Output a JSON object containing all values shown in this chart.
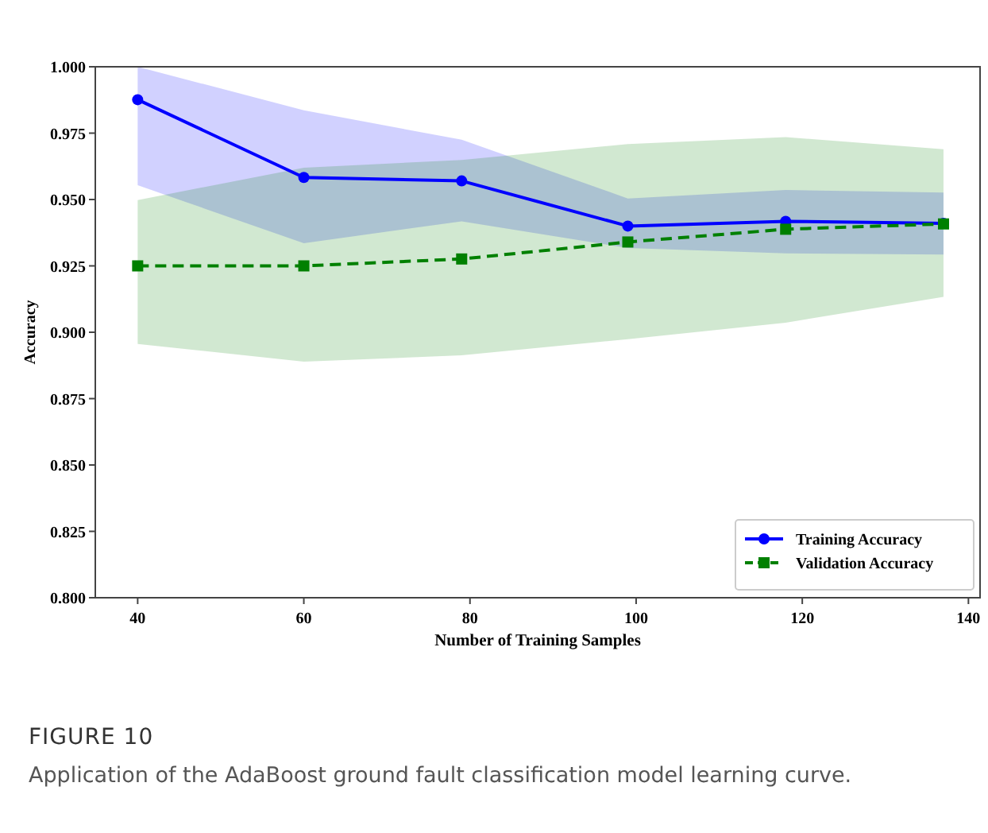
{
  "chart_data": {
    "type": "line",
    "xlabel": "Number of Training Samples",
    "ylabel": "Accuracy",
    "x": [
      40,
      60,
      79,
      99,
      118,
      137
    ],
    "series": [
      {
        "name": "Training Accuracy",
        "color": "#0000ff",
        "marker": "circle",
        "line_style": "solid",
        "values": [
          0.9876,
          0.9583,
          0.957,
          0.94,
          0.9418,
          0.941
        ],
        "lower": [
          0.9554,
          0.9335,
          0.9418,
          0.9317,
          0.9297,
          0.9293
        ],
        "upper": [
          1.0,
          0.9836,
          0.9725,
          0.9504,
          0.9536,
          0.9526
        ]
      },
      {
        "name": "Validation Accuracy",
        "color": "#008000",
        "marker": "square",
        "line_style": "dashed",
        "values": [
          0.925,
          0.925,
          0.9276,
          0.934,
          0.9388,
          0.9408
        ],
        "lower": [
          0.8956,
          0.8889,
          0.8913,
          0.8974,
          0.9036,
          0.9133
        ],
        "upper": [
          0.9498,
          0.962,
          0.9649,
          0.9709,
          0.9735,
          0.9689
        ]
      }
    ],
    "xlim": [
      34.9,
      141.4
    ],
    "ylim": [
      0.8,
      1.0
    ],
    "xticks": [
      40,
      60,
      80,
      100,
      120,
      140
    ],
    "yticks": [
      {
        "value": 0.8,
        "label": "0.800"
      },
      {
        "value": 0.825,
        "label": "0.825"
      },
      {
        "value": 0.85,
        "label": "0.850"
      },
      {
        "value": 0.875,
        "label": "0.875"
      },
      {
        "value": 0.9,
        "label": "0.900"
      },
      {
        "value": 0.925,
        "label": "0.925"
      },
      {
        "value": 0.95,
        "label": "0.950"
      },
      {
        "value": 0.975,
        "label": "0.975"
      },
      {
        "value": 1.0,
        "label": "1.000"
      }
    ],
    "grid": false,
    "legend": "bottom right",
    "annotations": [
      "FIGURE 10",
      "Application of the AdaBoost ground fault classification model learning curve."
    ]
  }
}
